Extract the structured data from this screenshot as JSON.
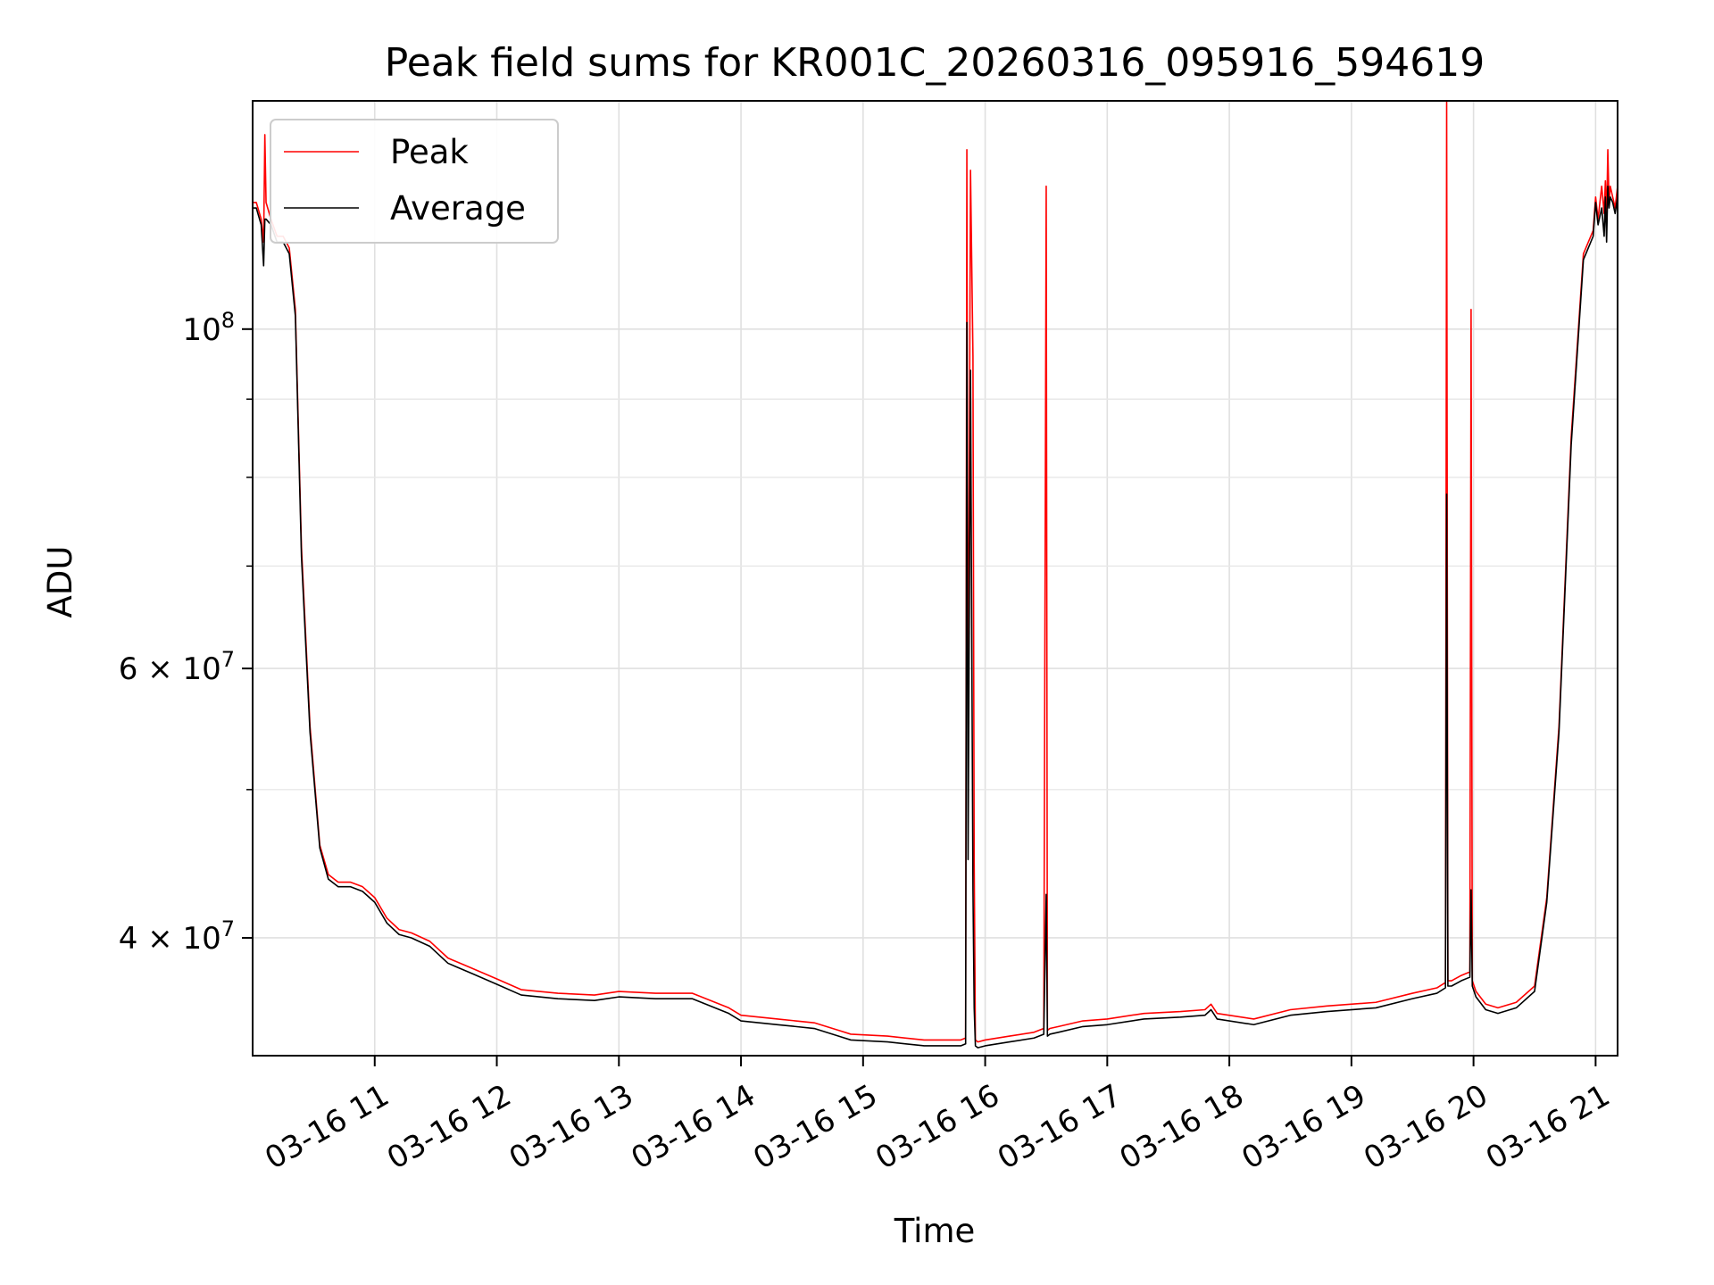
{
  "chart_data": {
    "type": "line",
    "title": "Peak field sums for KR001C_20260316_095916_594619",
    "xlabel": "Time",
    "ylabel": "ADU",
    "y_scale": "log",
    "x_unit": "hours (2026-03-16)",
    "xlim": [
      10.0,
      21.18
    ],
    "ylim": [
      33500000,
      141000000
    ],
    "grid": true,
    "legend_position": "top-left",
    "x_ticks": [
      {
        "value": 11,
        "label": "03-16 11"
      },
      {
        "value": 12,
        "label": "03-16 12"
      },
      {
        "value": 13,
        "label": "03-16 13"
      },
      {
        "value": 14,
        "label": "03-16 14"
      },
      {
        "value": 15,
        "label": "03-16 15"
      },
      {
        "value": 16,
        "label": "03-16 16"
      },
      {
        "value": 17,
        "label": "03-16 17"
      },
      {
        "value": 18,
        "label": "03-16 18"
      },
      {
        "value": 19,
        "label": "03-16 19"
      },
      {
        "value": 20,
        "label": "03-16 20"
      },
      {
        "value": 21,
        "label": "03-16 21"
      }
    ],
    "y_major_ticks": [
      {
        "value": 100000000,
        "base": "10",
        "exp": "8"
      },
      {
        "value": 60000000,
        "base": "6 × 10",
        "exp": "7"
      },
      {
        "value": 40000000,
        "base": "4 × 10",
        "exp": "7"
      }
    ],
    "y_minor_ticks": [
      90000000,
      80000000,
      70000000,
      50000000
    ],
    "series": [
      {
        "name": "Peak",
        "color": "#ff0000",
        "x": [
          10.0,
          10.03,
          10.07,
          10.09,
          10.1,
          10.11,
          10.15,
          10.2,
          10.25,
          10.3,
          10.35,
          10.4,
          10.47,
          10.55,
          10.62,
          10.7,
          10.8,
          10.9,
          11.0,
          11.1,
          11.2,
          11.3,
          11.45,
          11.6,
          11.8,
          12.0,
          12.2,
          12.5,
          12.8,
          13.0,
          13.3,
          13.6,
          13.9,
          14.0,
          14.3,
          14.6,
          14.8,
          14.9,
          15.2,
          15.5,
          15.8,
          15.84,
          15.85,
          15.86,
          15.88,
          15.9,
          15.91,
          15.92,
          15.94,
          16.0,
          16.2,
          16.4,
          16.48,
          16.5,
          16.51,
          16.53,
          16.6,
          16.8,
          17.0,
          17.3,
          17.6,
          17.8,
          17.85,
          17.9,
          18.2,
          18.5,
          18.8,
          19.2,
          19.5,
          19.7,
          19.77,
          19.78,
          19.79,
          19.82,
          19.9,
          19.97,
          19.98,
          19.99,
          20.02,
          20.1,
          20.2,
          20.35,
          20.5,
          20.6,
          20.7,
          20.8,
          20.9,
          20.98,
          21.0,
          21.02,
          21.05,
          21.07,
          21.08,
          21.09,
          21.1,
          21.11,
          21.12,
          21.14,
          21.16,
          21.18
        ],
        "values": [
          121000000,
          121000000,
          118000000,
          114000000,
          134000000,
          121000000,
          118000000,
          115000000,
          115000000,
          113000000,
          103000000,
          72000000,
          55000000,
          46000000,
          44000000,
          43500000,
          43500000,
          43200000,
          42500000,
          41200000,
          40500000,
          40300000,
          39800000,
          38800000,
          38200000,
          37600000,
          37000000,
          36800000,
          36700000,
          36900000,
          36800000,
          36800000,
          36000000,
          35600000,
          35400000,
          35200000,
          34800000,
          34600000,
          34500000,
          34300000,
          34300000,
          34400000,
          131000000,
          50000000,
          127000000,
          96000000,
          45000000,
          34300000,
          34200000,
          34300000,
          34500000,
          34700000,
          34900000,
          124000000,
          34800000,
          34900000,
          35000000,
          35300000,
          35400000,
          35700000,
          35800000,
          35900000,
          36200000,
          35700000,
          35400000,
          35900000,
          36100000,
          36300000,
          36800000,
          37100000,
          37400000,
          141000000,
          37500000,
          37500000,
          37800000,
          38000000,
          103000000,
          37500000,
          36900000,
          36200000,
          36000000,
          36300000,
          37200000,
          42500000,
          55000000,
          85000000,
          112000000,
          116000000,
          122000000,
          118000000,
          124000000,
          119000000,
          125000000,
          118000000,
          131000000,
          121000000,
          124000000,
          122000000,
          120000000,
          124000000
        ]
      },
      {
        "name": "Average",
        "color": "#000000",
        "x": [
          10.0,
          10.03,
          10.07,
          10.09,
          10.1,
          10.11,
          10.15,
          10.2,
          10.25,
          10.3,
          10.35,
          10.4,
          10.47,
          10.55,
          10.62,
          10.7,
          10.8,
          10.9,
          11.0,
          11.1,
          11.2,
          11.3,
          11.45,
          11.6,
          11.8,
          12.0,
          12.2,
          12.5,
          12.8,
          13.0,
          13.3,
          13.6,
          13.9,
          14.0,
          14.3,
          14.6,
          14.8,
          14.9,
          15.2,
          15.5,
          15.8,
          15.84,
          15.85,
          15.86,
          15.88,
          15.9,
          15.91,
          15.92,
          15.94,
          16.0,
          16.2,
          16.4,
          16.48,
          16.5,
          16.51,
          16.53,
          16.6,
          16.8,
          17.0,
          17.3,
          17.6,
          17.8,
          17.85,
          17.9,
          18.2,
          18.5,
          18.8,
          19.2,
          19.5,
          19.7,
          19.77,
          19.78,
          19.79,
          19.82,
          19.9,
          19.97,
          19.98,
          19.99,
          20.02,
          20.1,
          20.2,
          20.35,
          20.5,
          20.6,
          20.7,
          20.8,
          20.9,
          20.98,
          21.0,
          21.02,
          21.05,
          21.07,
          21.08,
          21.09,
          21.1,
          21.11,
          21.12,
          21.14,
          21.16,
          21.18
        ],
        "values": [
          120000000,
          120000000,
          117000000,
          110000000,
          118000000,
          118000000,
          117000000,
          114000000,
          114000000,
          112000000,
          102000000,
          71000000,
          54500000,
          45800000,
          43700000,
          43200000,
          43200000,
          42900000,
          42200000,
          40900000,
          40200000,
          40000000,
          39500000,
          38500000,
          37900000,
          37300000,
          36700000,
          36500000,
          36400000,
          36600000,
          36500000,
          36500000,
          35700000,
          35300000,
          35100000,
          34900000,
          34500000,
          34300000,
          34200000,
          34000000,
          34000000,
          34100000,
          101000000,
          45000000,
          94000000,
          43000000,
          36000000,
          34000000,
          33900000,
          34000000,
          34200000,
          34400000,
          34600000,
          42700000,
          34500000,
          34600000,
          34700000,
          35000000,
          35100000,
          35400000,
          35500000,
          35600000,
          35900000,
          35400000,
          35100000,
          35600000,
          35800000,
          36000000,
          36500000,
          36800000,
          37100000,
          78000000,
          37200000,
          37200000,
          37500000,
          37700000,
          43000000,
          37200000,
          36600000,
          35900000,
          35700000,
          36000000,
          36900000,
          42200000,
          54500000,
          84000000,
          111000000,
          115000000,
          121000000,
          117000000,
          120000000,
          115000000,
          122000000,
          114000000,
          124000000,
          120000000,
          122000000,
          121000000,
          119000000,
          122000000
        ]
      }
    ]
  }
}
